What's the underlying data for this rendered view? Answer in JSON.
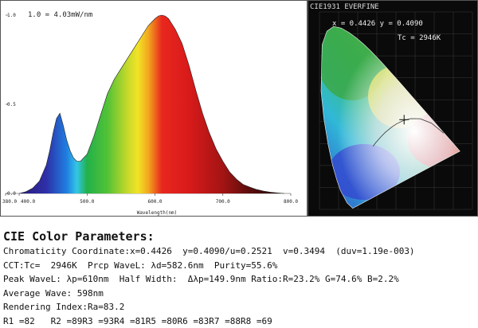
{
  "chart_data": [
    {
      "type": "area",
      "annotation": "1.0 = 4.03mW/nm",
      "xlabel": "Wavelength(nm)",
      "ylabel": "",
      "xlim": [
        380,
        800
      ],
      "ylim": [
        0,
        1.0
      ],
      "x_tick_labels": [
        "380.0",
        "400.0",
        "500.0",
        "600.0",
        "700.0",
        "800.0"
      ],
      "x_ticks": [
        380,
        400,
        500,
        600,
        700,
        800
      ],
      "y_tick_labels": [
        "0.0",
        "0.5",
        "1.0"
      ],
      "y_ticks": [
        0,
        0.5,
        1.0
      ],
      "x": [
        400,
        410,
        420,
        430,
        440,
        445,
        450,
        455,
        460,
        465,
        470,
        475,
        480,
        485,
        490,
        500,
        510,
        520,
        530,
        540,
        550,
        560,
        570,
        580,
        590,
        600,
        605,
        610,
        615,
        620,
        630,
        640,
        650,
        660,
        670,
        680,
        690,
        700,
        710,
        720,
        730,
        740,
        750,
        760,
        770,
        780,
        790
      ],
      "values": [
        0.0,
        0.01,
        0.03,
        0.07,
        0.16,
        0.24,
        0.34,
        0.42,
        0.45,
        0.38,
        0.3,
        0.24,
        0.2,
        0.18,
        0.18,
        0.22,
        0.32,
        0.44,
        0.56,
        0.64,
        0.7,
        0.76,
        0.82,
        0.88,
        0.94,
        0.98,
        0.995,
        1.0,
        0.995,
        0.98,
        0.92,
        0.84,
        0.72,
        0.58,
        0.45,
        0.34,
        0.25,
        0.18,
        0.12,
        0.08,
        0.05,
        0.035,
        0.022,
        0.013,
        0.007,
        0.003,
        0.0
      ],
      "grid": false
    },
    {
      "type": "scatter",
      "title": "CIE1931 EVERFINE",
      "chart_type_note": "chromaticity diagram",
      "point": {
        "x": 0.4426,
        "y": 0.409
      },
      "point_label": "x = 0.4426 y = 0.4090",
      "cct_label": "Tc =  2946K",
      "xlim": [
        0,
        0.8
      ],
      "ylim": [
        0,
        0.9
      ],
      "grid": true
    }
  ],
  "params": {
    "title": "CIE Color Parameters:",
    "lines": [
      "Chromaticity Coordinate:x=0.4426  y=0.4090/u=0.2521  v=0.3494  (duv=1.19e-003)",
      "CCT:Tc=  2946K  Prcp WaveL: λd=582.6nm  Purity=55.6%",
      "Peak WaveL: λp=610nm  Half Width:  Δλp=149.9nm Ratio:R=23.2% G=74.6% B=2.2%",
      "Average Wave: 598nm",
      "Rendering Index:Ra=83.2",
      "R1 =82   R2 =89R3 =93R4 =81R5 =80R6 =83R7 =88R8 =69"
    ]
  },
  "colors": {
    "cie_background": "#0a0a0a",
    "grid": "#3a3a3a",
    "axis_text": "#222222"
  }
}
